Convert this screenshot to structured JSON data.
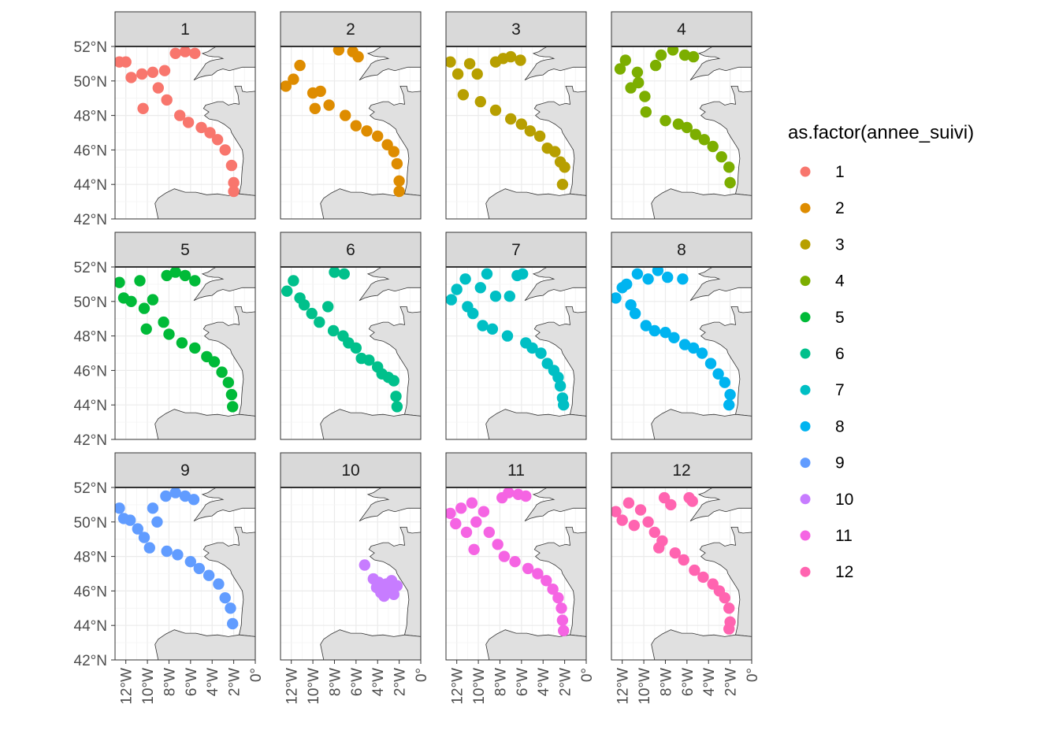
{
  "chart_data": {
    "type": "scatter",
    "facet_by": "month",
    "facets": [
      "1",
      "2",
      "3",
      "4",
      "5",
      "6",
      "7",
      "8",
      "9",
      "10",
      "11",
      "12"
    ],
    "facet_layout": {
      "ncol": 4,
      "nrow": 3
    },
    "x_axis": {
      "lim": [
        -13,
        0
      ],
      "ticks": [
        -12,
        -10,
        -8,
        -6,
        -4,
        -2,
        0
      ],
      "tick_labels": [
        "12°W",
        "10°W",
        "8°W",
        "6°W",
        "4°W",
        "2°W",
        "0°"
      ]
    },
    "y_axis": {
      "lim": [
        42,
        52
      ],
      "ticks": [
        42,
        44,
        46,
        48,
        50,
        52
      ],
      "tick_labels": [
        "42°N",
        "44°N",
        "46°N",
        "48°N",
        "50°N",
        "52°N"
      ]
    },
    "grid": true,
    "basemap": "coastline (land shaded grey)",
    "legend": {
      "title": "as.factor(annee_suivi)",
      "position": "right",
      "entries": [
        "1",
        "2",
        "3",
        "4",
        "5",
        "6",
        "7",
        "8",
        "9",
        "10",
        "11",
        "12"
      ],
      "colors": [
        "#F8766D",
        "#DE8C00",
        "#B79F00",
        "#7CAE00",
        "#00BA38",
        "#00C08B",
        "#00BFC4",
        "#00B4F0",
        "#619CFF",
        "#C77CFF",
        "#F564E3",
        "#FF64B0"
      ]
    },
    "series": [
      {
        "name": "1",
        "points": [
          [
            -12.6,
            51.1
          ],
          [
            -12.0,
            51.1
          ],
          [
            -11.5,
            50.2
          ],
          [
            -10.5,
            50.4
          ],
          [
            -9.5,
            50.5
          ],
          [
            -9.0,
            49.6
          ],
          [
            -8.2,
            48.9
          ],
          [
            -8.4,
            50.6
          ],
          [
            -7.4,
            51.6
          ],
          [
            -6.5,
            51.7
          ],
          [
            -5.6,
            51.6
          ],
          [
            -10.4,
            48.4
          ],
          [
            -7.0,
            48.0
          ],
          [
            -6.2,
            47.6
          ],
          [
            -5.0,
            47.3
          ],
          [
            -4.2,
            47.0
          ],
          [
            -3.5,
            46.6
          ],
          [
            -2.8,
            46.0
          ],
          [
            -2.2,
            45.1
          ],
          [
            -2.0,
            44.1
          ],
          [
            -2.0,
            43.6
          ]
        ]
      },
      {
        "name": "2",
        "points": [
          [
            -12.5,
            49.7
          ],
          [
            -11.8,
            50.1
          ],
          [
            -11.2,
            50.9
          ],
          [
            -10.0,
            49.3
          ],
          [
            -9.3,
            49.4
          ],
          [
            -8.5,
            48.6
          ],
          [
            -7.6,
            51.8
          ],
          [
            -6.3,
            51.7
          ],
          [
            -5.8,
            51.4
          ],
          [
            -9.8,
            48.4
          ],
          [
            -7.0,
            48.0
          ],
          [
            -6.0,
            47.4
          ],
          [
            -5.0,
            47.1
          ],
          [
            -4.0,
            46.8
          ],
          [
            -3.1,
            46.3
          ],
          [
            -2.5,
            45.9
          ],
          [
            -2.2,
            45.2
          ],
          [
            -2.0,
            44.2
          ],
          [
            -2.0,
            43.6
          ]
        ]
      },
      {
        "name": "3",
        "points": [
          [
            -12.6,
            51.1
          ],
          [
            -11.9,
            50.4
          ],
          [
            -11.4,
            49.2
          ],
          [
            -10.8,
            51.0
          ],
          [
            -10.1,
            50.4
          ],
          [
            -9.8,
            48.8
          ],
          [
            -8.4,
            51.1
          ],
          [
            -7.7,
            51.3
          ],
          [
            -7.0,
            51.4
          ],
          [
            -6.1,
            51.2
          ],
          [
            -8.4,
            48.3
          ],
          [
            -7.0,
            47.8
          ],
          [
            -6.0,
            47.5
          ],
          [
            -5.2,
            47.1
          ],
          [
            -4.3,
            46.8
          ],
          [
            -3.6,
            46.1
          ],
          [
            -2.9,
            45.9
          ],
          [
            -2.4,
            45.3
          ],
          [
            -2.0,
            45.0
          ],
          [
            -2.2,
            44.0
          ]
        ]
      },
      {
        "name": "4",
        "points": [
          [
            -12.2,
            50.7
          ],
          [
            -11.7,
            51.2
          ],
          [
            -11.2,
            49.6
          ],
          [
            -10.6,
            50.5
          ],
          [
            -10.5,
            49.9
          ],
          [
            -9.9,
            49.1
          ],
          [
            -8.9,
            50.9
          ],
          [
            -8.4,
            51.5
          ],
          [
            -7.3,
            51.8
          ],
          [
            -6.2,
            51.5
          ],
          [
            -5.4,
            51.4
          ],
          [
            -9.8,
            48.2
          ],
          [
            -8.0,
            47.7
          ],
          [
            -6.8,
            47.5
          ],
          [
            -6.0,
            47.3
          ],
          [
            -5.2,
            46.9
          ],
          [
            -4.4,
            46.6
          ],
          [
            -3.6,
            46.2
          ],
          [
            -2.8,
            45.6
          ],
          [
            -2.1,
            45.0
          ],
          [
            -2.0,
            44.1
          ]
        ]
      },
      {
        "name": "5",
        "points": [
          [
            -12.6,
            51.1
          ],
          [
            -12.2,
            50.2
          ],
          [
            -11.5,
            50.0
          ],
          [
            -10.7,
            51.2
          ],
          [
            -10.3,
            49.6
          ],
          [
            -9.5,
            50.1
          ],
          [
            -8.5,
            48.8
          ],
          [
            -8.2,
            51.5
          ],
          [
            -7.4,
            51.7
          ],
          [
            -6.5,
            51.5
          ],
          [
            -5.6,
            51.2
          ],
          [
            -10.1,
            48.4
          ],
          [
            -8.0,
            48.1
          ],
          [
            -6.8,
            47.6
          ],
          [
            -5.6,
            47.3
          ],
          [
            -4.5,
            46.8
          ],
          [
            -3.8,
            46.5
          ],
          [
            -3.1,
            45.9
          ],
          [
            -2.5,
            45.3
          ],
          [
            -2.2,
            44.6
          ],
          [
            -2.1,
            43.9
          ]
        ]
      },
      {
        "name": "6",
        "points": [
          [
            -12.4,
            50.6
          ],
          [
            -11.8,
            51.2
          ],
          [
            -11.2,
            50.2
          ],
          [
            -10.8,
            49.8
          ],
          [
            -10.1,
            49.3
          ],
          [
            -9.4,
            48.8
          ],
          [
            -8.6,
            49.7
          ],
          [
            -8.0,
            51.7
          ],
          [
            -7.1,
            51.6
          ],
          [
            -8.1,
            48.3
          ],
          [
            -7.2,
            48.0
          ],
          [
            -6.7,
            47.6
          ],
          [
            -6.0,
            47.3
          ],
          [
            -5.5,
            46.7
          ],
          [
            -4.8,
            46.6
          ],
          [
            -4.0,
            46.2
          ],
          [
            -3.6,
            45.8
          ],
          [
            -3.0,
            45.6
          ],
          [
            -2.5,
            45.4
          ],
          [
            -2.3,
            44.5
          ],
          [
            -2.2,
            43.9
          ]
        ]
      },
      {
        "name": "7",
        "points": [
          [
            -12.5,
            50.1
          ],
          [
            -12.0,
            50.7
          ],
          [
            -11.2,
            51.3
          ],
          [
            -11.0,
            49.7
          ],
          [
            -10.5,
            49.3
          ],
          [
            -9.8,
            50.8
          ],
          [
            -9.2,
            51.6
          ],
          [
            -8.4,
            50.3
          ],
          [
            -7.1,
            50.3
          ],
          [
            -6.4,
            51.5
          ],
          [
            -5.9,
            51.6
          ],
          [
            -9.6,
            48.6
          ],
          [
            -8.7,
            48.4
          ],
          [
            -7.3,
            48.0
          ],
          [
            -5.6,
            47.6
          ],
          [
            -5.0,
            47.3
          ],
          [
            -4.2,
            47.0
          ],
          [
            -3.6,
            46.4
          ],
          [
            -3.0,
            46.0
          ],
          [
            -2.6,
            45.6
          ],
          [
            -2.4,
            45.1
          ],
          [
            -2.2,
            44.4
          ],
          [
            -2.1,
            44.0
          ]
        ]
      },
      {
        "name": "8",
        "points": [
          [
            -12.6,
            50.2
          ],
          [
            -12.0,
            50.8
          ],
          [
            -11.6,
            51.0
          ],
          [
            -11.2,
            49.8
          ],
          [
            -10.8,
            49.3
          ],
          [
            -10.6,
            51.6
          ],
          [
            -9.6,
            51.3
          ],
          [
            -8.7,
            51.8
          ],
          [
            -7.8,
            51.4
          ],
          [
            -6.4,
            51.3
          ],
          [
            -9.8,
            48.6
          ],
          [
            -9.0,
            48.3
          ],
          [
            -8.0,
            48.2
          ],
          [
            -7.2,
            47.9
          ],
          [
            -6.2,
            47.5
          ],
          [
            -5.4,
            47.3
          ],
          [
            -4.6,
            47.0
          ],
          [
            -3.8,
            46.4
          ],
          [
            -3.1,
            45.8
          ],
          [
            -2.5,
            45.3
          ],
          [
            -2.0,
            44.6
          ],
          [
            -2.1,
            44.0
          ]
        ]
      },
      {
        "name": "9",
        "points": [
          [
            -12.6,
            50.8
          ],
          [
            -12.2,
            50.2
          ],
          [
            -11.6,
            50.1
          ],
          [
            -10.9,
            49.6
          ],
          [
            -10.3,
            49.1
          ],
          [
            -9.5,
            50.8
          ],
          [
            -9.1,
            50.0
          ],
          [
            -8.3,
            51.5
          ],
          [
            -7.4,
            51.7
          ],
          [
            -6.5,
            51.5
          ],
          [
            -5.7,
            51.3
          ],
          [
            -9.8,
            48.5
          ],
          [
            -8.2,
            48.3
          ],
          [
            -7.2,
            48.1
          ],
          [
            -6.0,
            47.7
          ],
          [
            -5.2,
            47.3
          ],
          [
            -4.3,
            46.9
          ],
          [
            -3.4,
            46.4
          ],
          [
            -2.8,
            45.6
          ],
          [
            -2.3,
            45.0
          ],
          [
            -2.1,
            44.1
          ]
        ]
      },
      {
        "name": "10",
        "points": [
          [
            -5.2,
            47.5
          ],
          [
            -4.4,
            46.7
          ],
          [
            -3.9,
            46.5
          ],
          [
            -3.6,
            46.1
          ],
          [
            -3.4,
            45.7
          ],
          [
            -3.0,
            46.2
          ],
          [
            -2.7,
            46.6
          ],
          [
            -2.5,
            45.8
          ],
          [
            -2.2,
            46.3
          ],
          [
            -3.7,
            45.9
          ],
          [
            -4.1,
            46.2
          ],
          [
            -3.2,
            46.4
          ]
        ]
      },
      {
        "name": "11",
        "points": [
          [
            -12.6,
            50.5
          ],
          [
            -12.1,
            49.9
          ],
          [
            -11.6,
            50.8
          ],
          [
            -11.1,
            49.4
          ],
          [
            -10.6,
            51.1
          ],
          [
            -10.2,
            50.0
          ],
          [
            -9.5,
            50.6
          ],
          [
            -9.0,
            49.4
          ],
          [
            -8.2,
            48.7
          ],
          [
            -7.8,
            51.4
          ],
          [
            -7.2,
            51.7
          ],
          [
            -6.3,
            51.6
          ],
          [
            -5.6,
            51.5
          ],
          [
            -10.4,
            48.4
          ],
          [
            -7.6,
            48.0
          ],
          [
            -6.6,
            47.7
          ],
          [
            -5.4,
            47.3
          ],
          [
            -4.5,
            47.0
          ],
          [
            -3.7,
            46.6
          ],
          [
            -3.1,
            46.1
          ],
          [
            -2.6,
            45.6
          ],
          [
            -2.3,
            45.0
          ],
          [
            -2.2,
            44.3
          ],
          [
            -2.1,
            43.7
          ]
        ]
      },
      {
        "name": "12",
        "points": [
          [
            -12.6,
            50.6
          ],
          [
            -12.0,
            50.1
          ],
          [
            -11.4,
            51.1
          ],
          [
            -10.9,
            49.8
          ],
          [
            -10.3,
            50.7
          ],
          [
            -9.6,
            50.0
          ],
          [
            -9.0,
            49.4
          ],
          [
            -8.3,
            48.9
          ],
          [
            -8.1,
            51.4
          ],
          [
            -7.5,
            51.0
          ],
          [
            -5.8,
            51.4
          ],
          [
            -5.5,
            51.2
          ],
          [
            -8.6,
            48.5
          ],
          [
            -7.1,
            48.2
          ],
          [
            -6.3,
            47.8
          ],
          [
            -5.3,
            47.2
          ],
          [
            -4.5,
            46.8
          ],
          [
            -3.6,
            46.4
          ],
          [
            -3.0,
            46.0
          ],
          [
            -2.5,
            45.6
          ],
          [
            -2.1,
            45.0
          ],
          [
            -2.0,
            44.2
          ],
          [
            -2.1,
            43.8
          ]
        ]
      }
    ]
  }
}
